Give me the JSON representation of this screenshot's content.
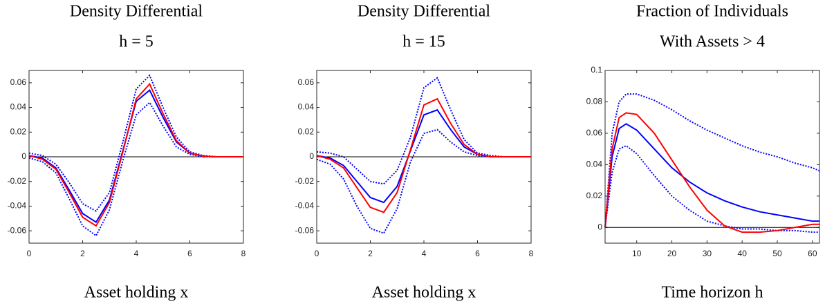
{
  "chart_data": [
    {
      "type": "line",
      "title": "Density Differential",
      "subtitle": "h = 5",
      "x_label": "Asset holding x",
      "x": [
        0,
        0.5,
        1,
        1.5,
        2,
        2.5,
        3,
        3.5,
        4,
        4.5,
        5,
        5.5,
        6,
        6.5,
        7,
        7.5,
        8
      ],
      "series": [
        {
          "color": "#0000ff",
          "style": "dotted",
          "values": [
            0.003,
            0.001,
            -0.006,
            -0.021,
            -0.038,
            -0.044,
            -0.029,
            0.012,
            0.055,
            0.066,
            0.04,
            0.016,
            0.004,
            0.001,
            0,
            0,
            0
          ]
        },
        {
          "color": "#0000ff",
          "style": "dotted",
          "values": [
            -0.001,
            -0.004,
            -0.013,
            -0.034,
            -0.056,
            -0.064,
            -0.043,
            -0.003,
            0.034,
            0.044,
            0.025,
            0.008,
            0.002,
            0,
            0,
            0,
            0
          ]
        },
        {
          "color": "#0000ff",
          "style": "solid",
          "values": [
            0.001,
            -0.001,
            -0.009,
            -0.027,
            -0.046,
            -0.053,
            -0.035,
            0.005,
            0.045,
            0.054,
            0.032,
            0.012,
            0.003,
            0.0005,
            0,
            0,
            0
          ]
        },
        {
          "color": "#ff0000",
          "style": "solid",
          "values": [
            0.001,
            -0.002,
            -0.01,
            -0.029,
            -0.049,
            -0.056,
            -0.037,
            0.004,
            0.047,
            0.059,
            0.035,
            0.013,
            0.003,
            0.0005,
            0,
            0,
            0
          ]
        }
      ],
      "xlim": [
        0,
        8
      ],
      "xticks": [
        0,
        2,
        4,
        6,
        8
      ],
      "ylim": [
        -0.07,
        0.07
      ],
      "yticks": [
        -0.06,
        -0.04,
        -0.02,
        0,
        0.02,
        0.04,
        0.06
      ]
    },
    {
      "type": "line",
      "title": "Density Differential",
      "subtitle": "h = 15",
      "x_label": "Asset holding x",
      "x": [
        0,
        0.5,
        1,
        1.5,
        2,
        2.5,
        3,
        3.5,
        4,
        4.5,
        5,
        5.5,
        6,
        6.5,
        7,
        7.5,
        8
      ],
      "series": [
        {
          "color": "#0000ff",
          "style": "dotted",
          "values": [
            0.004,
            0.003,
            0,
            -0.01,
            -0.02,
            -0.022,
            -0.011,
            0.016,
            0.056,
            0.064,
            0.038,
            0.014,
            0.003,
            0.001,
            0,
            0,
            0
          ]
        },
        {
          "color": "#0000ff",
          "style": "dotted",
          "values": [
            -0.002,
            -0.006,
            -0.018,
            -0.04,
            -0.058,
            -0.062,
            -0.042,
            -0.004,
            0.019,
            0.022,
            0.012,
            0.004,
            0.001,
            0,
            0,
            0,
            0
          ]
        },
        {
          "color": "#0000ff",
          "style": "solid",
          "values": [
            0.001,
            -0.001,
            -0.007,
            -0.02,
            -0.033,
            -0.037,
            -0.024,
            0.005,
            0.034,
            0.038,
            0.022,
            0.008,
            0.002,
            0,
            0,
            0,
            0
          ]
        },
        {
          "color": "#ff0000",
          "style": "solid",
          "values": [
            0.001,
            -0.002,
            -0.009,
            -0.025,
            -0.041,
            -0.045,
            -0.029,
            0.006,
            0.042,
            0.047,
            0.027,
            0.01,
            0.002,
            0,
            0,
            0,
            0
          ]
        }
      ],
      "xlim": [
        0,
        8
      ],
      "xticks": [
        0,
        2,
        4,
        6,
        8
      ],
      "ylim": [
        -0.07,
        0.07
      ],
      "yticks": [
        -0.06,
        -0.04,
        -0.02,
        0,
        0.02,
        0.04,
        0.06
      ]
    },
    {
      "type": "line",
      "title": "Fraction of Individuals",
      "subtitle": "With Assets > 4",
      "x_label": "Time horizon h",
      "x": [
        1,
        3,
        5,
        7,
        10,
        15,
        20,
        25,
        30,
        35,
        40,
        45,
        50,
        55,
        60,
        62
      ],
      "series": [
        {
          "color": "#0000ff",
          "style": "dotted",
          "values": [
            0,
            0.06,
            0.08,
            0.085,
            0.085,
            0.081,
            0.075,
            0.068,
            0.062,
            0.057,
            0.052,
            0.048,
            0.045,
            0.041,
            0.038,
            0.036
          ]
        },
        {
          "color": "#0000ff",
          "style": "dotted",
          "values": [
            0,
            0.035,
            0.05,
            0.052,
            0.047,
            0.033,
            0.02,
            0.011,
            0.004,
            0.001,
            -0.001,
            -0.001,
            -0.002,
            -0.002,
            -0.003,
            -0.003
          ]
        },
        {
          "color": "#0000ff",
          "style": "solid",
          "values": [
            0,
            0.045,
            0.063,
            0.066,
            0.062,
            0.05,
            0.038,
            0.029,
            0.022,
            0.017,
            0.013,
            0.01,
            0.008,
            0.006,
            0.004,
            0.004
          ]
        },
        {
          "color": "#ff0000",
          "style": "solid",
          "values": [
            0,
            0.05,
            0.07,
            0.073,
            0.072,
            0.06,
            0.043,
            0.026,
            0.011,
            0.001,
            -0.003,
            -0.003,
            -0.002,
            0,
            0.002,
            0.002
          ]
        }
      ],
      "xlim": [
        1,
        62
      ],
      "xticks": [
        10,
        20,
        30,
        40,
        50,
        60
      ],
      "ylim": [
        -0.01,
        0.1
      ],
      "yticks": [
        0,
        0.02,
        0.04,
        0.06,
        0.08,
        0.1
      ]
    }
  ]
}
